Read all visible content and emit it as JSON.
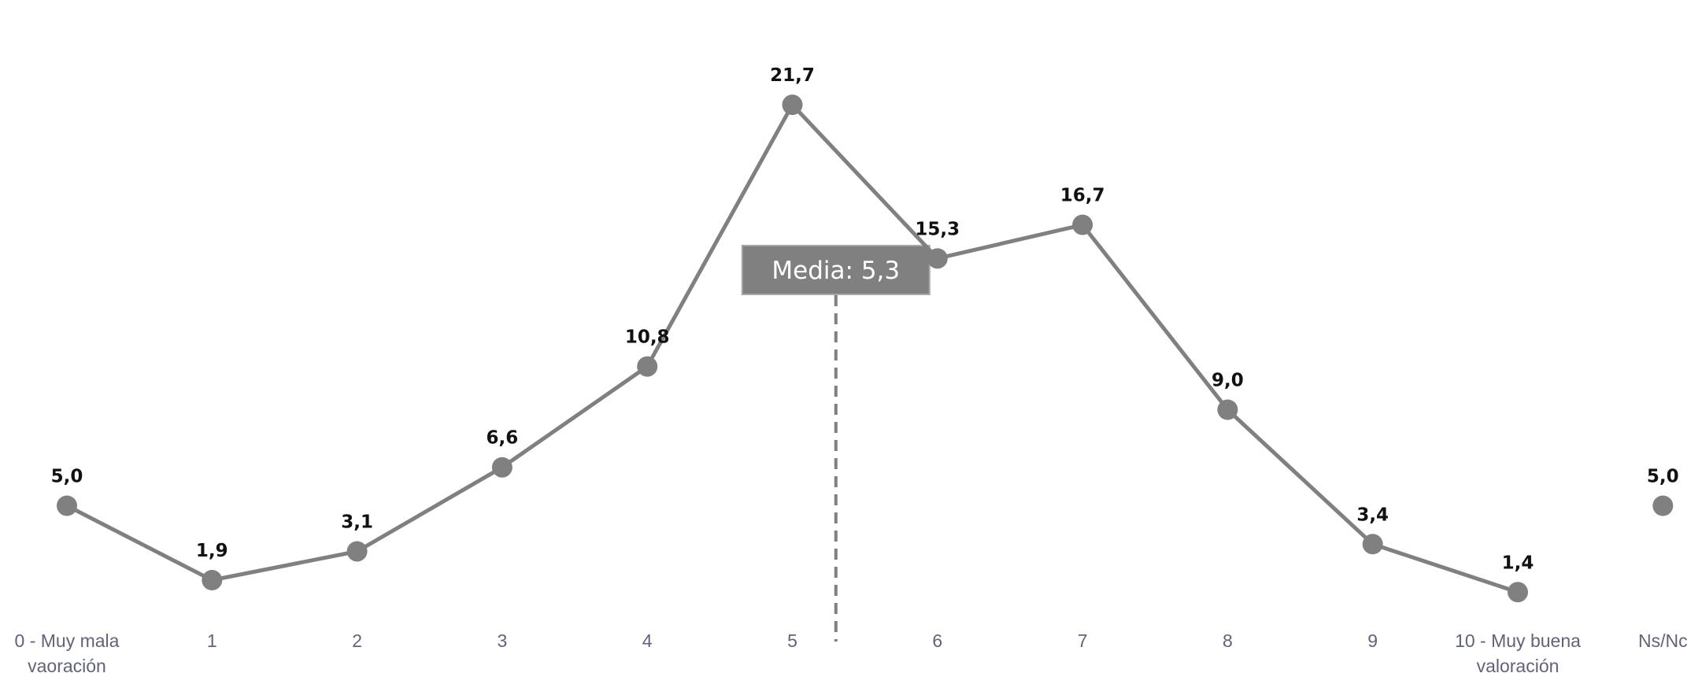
{
  "chart_data": {
    "type": "line",
    "title": "",
    "xlabel": "",
    "ylabel": "",
    "categories": [
      "0 - Muy mala vaoración",
      "1",
      "2",
      "3",
      "4",
      "5",
      "6",
      "7",
      "8",
      "9",
      "10 - Muy buena valoración",
      "Ns/Nc"
    ],
    "values": [
      5.0,
      1.9,
      3.1,
      6.6,
      10.8,
      21.7,
      15.3,
      16.7,
      9.0,
      3.4,
      1.4,
      5.0
    ],
    "value_labels": [
      "5,0",
      "1,9",
      "3,1",
      "6,6",
      "10,8",
      "21,7",
      "15,3",
      "16,7",
      "9,0",
      "3,4",
      "1,4",
      "5,0"
    ],
    "connected_points": 11,
    "ylim": [
      0,
      23
    ],
    "grid": false,
    "legend": "none",
    "line_color": "#808080",
    "marker_color": "#808080",
    "annotation": {
      "label": "Media: 5,3",
      "x_value": 5.3,
      "color": "#808080"
    }
  }
}
